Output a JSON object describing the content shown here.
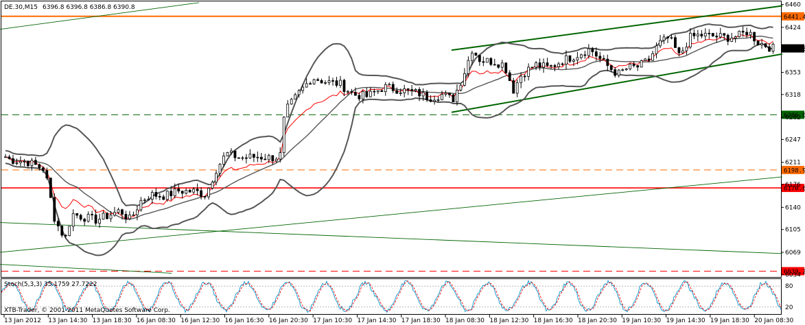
{
  "header": {
    "symbol": "DE.30,M15",
    "ohlc": "6396.8 6396.8 6386.8 6390.8"
  },
  "indicator": {
    "label": "Stoch(5,3,3) 35.1759 27.7222",
    "levels": [
      "80",
      "20"
    ]
  },
  "watermark": "XTB-Trader, © 2001-2011 MetaQuotes Software Corp.",
  "colors": {
    "candle": "#000000",
    "bollinger": "#555555",
    "ma": "#ff0000",
    "trend": "#006400",
    "resistance": "#ff6a00",
    "support_red": "#ff0000",
    "dashed_green": "#006400",
    "dashed_orange": "#ff6a00",
    "stoch_main": "#1f9fd0",
    "stoch_signal": "#ff0000",
    "current_price": "#000000"
  },
  "chart_data": {
    "type": "candlestick",
    "ylim": [
      6030,
      6465
    ],
    "yticks": [
      "6460",
      "6424",
      "6389",
      "6353",
      "6318",
      "6282",
      "6247",
      "6211",
      "6176",
      "6140",
      "6105",
      "6069",
      "6034"
    ],
    "xticks": [
      "13 Jan 2012",
      "13 Jan 14:30",
      "13 Jan 18:30",
      "16 Jan 08:30",
      "16 Jan 12:30",
      "16 Jan 16:30",
      "16 Jan 20:30",
      "17 Jan 10:30",
      "17 Jan 14:30",
      "17 Jan 18:30",
      "18 Jan 08:30",
      "18 Jan 12:30",
      "18 Jan 16:30",
      "18 Jan 20:30",
      "19 Jan 10:30",
      "19 Jan 14:30",
      "19 Jan 18:30",
      "20 Jan 08:30"
    ],
    "levels": [
      {
        "name": "resistance",
        "value": 6441.4,
        "label": "6441.4",
        "style": "solid",
        "color": "#ff6a00"
      },
      {
        "name": "dashed-green",
        "value": 6286.0,
        "label": "6286.0",
        "style": "dashed",
        "color": "#006400"
      },
      {
        "name": "dashed-orange",
        "value": 6198.9,
        "label": "6198.9",
        "style": "dashed",
        "color": "#ff6a00"
      },
      {
        "name": "support",
        "value": 6170.6,
        "label": "6170.6",
        "style": "solid",
        "color": "#ff0000"
      },
      {
        "name": "dashed-red",
        "value": 6039.2,
        "label": "6039.2",
        "style": "dashed",
        "color": "#ff0000"
      }
    ],
    "current_price": {
      "value": 6390.8,
      "label": "6390.8"
    },
    "channel": {
      "upper": [
        [
          658,
          6388
        ],
        [
          1140,
          6458
        ]
      ],
      "lower": [
        [
          658,
          6290
        ],
        [
          1140,
          6382
        ]
      ]
    },
    "trendlines": [
      {
        "from": [
          0,
          6421
        ],
        "to": [
          290,
          6463
        ]
      },
      {
        "from": [
          0,
          6069
        ],
        "to": [
          1140,
          6188
        ]
      },
      {
        "from": [
          0,
          6116
        ],
        "to": [
          1140,
          6067
        ]
      },
      {
        "from": [
          0,
          6050
        ],
        "to": [
          250,
          6036
        ]
      }
    ],
    "anchors": [
      [
        0,
        6225
      ],
      [
        15,
        6215
      ],
      [
        40,
        6212
      ],
      [
        65,
        6200
      ],
      [
        80,
        6120
      ],
      [
        95,
        6090
      ],
      [
        105,
        6130
      ],
      [
        120,
        6125
      ],
      [
        140,
        6120
      ],
      [
        160,
        6128
      ],
      [
        175,
        6135
      ],
      [
        190,
        6120
      ],
      [
        205,
        6150
      ],
      [
        220,
        6160
      ],
      [
        240,
        6158
      ],
      [
        260,
        6166
      ],
      [
        285,
        6165
      ],
      [
        300,
        6160
      ],
      [
        315,
        6200
      ],
      [
        330,
        6225
      ],
      [
        350,
        6218
      ],
      [
        375,
        6220
      ],
      [
        395,
        6218
      ],
      [
        408,
        6220
      ],
      [
        415,
        6290
      ],
      [
        435,
        6320
      ],
      [
        455,
        6345
      ],
      [
        475,
        6338
      ],
      [
        495,
        6335
      ],
      [
        515,
        6318
      ],
      [
        535,
        6315
      ],
      [
        560,
        6330
      ],
      [
        585,
        6325
      ],
      [
        610,
        6320
      ],
      [
        625,
        6313
      ],
      [
        645,
        6318
      ],
      [
        660,
        6310
      ],
      [
        675,
        6348
      ],
      [
        688,
        6390
      ],
      [
        700,
        6372
      ],
      [
        720,
        6370
      ],
      [
        735,
        6365
      ],
      [
        748,
        6325
      ],
      [
        760,
        6350
      ],
      [
        780,
        6365
      ],
      [
        800,
        6360
      ],
      [
        820,
        6372
      ],
      [
        840,
        6380
      ],
      [
        860,
        6390
      ],
      [
        880,
        6368
      ],
      [
        900,
        6350
      ],
      [
        915,
        6360
      ],
      [
        930,
        6362
      ],
      [
        945,
        6372
      ],
      [
        960,
        6398
      ],
      [
        975,
        6408
      ],
      [
        990,
        6378
      ],
      [
        1005,
        6408
      ],
      [
        1020,
        6412
      ],
      [
        1040,
        6410
      ],
      [
        1060,
        6408
      ],
      [
        1075,
        6410
      ],
      [
        1090,
        6418
      ],
      [
        1105,
        6400
      ],
      [
        1118,
        6395
      ],
      [
        1124,
        6391
      ]
    ],
    "stoch_ylim": [
      0,
      100
    ],
    "stoch_levels": [
      80,
      20
    ]
  }
}
